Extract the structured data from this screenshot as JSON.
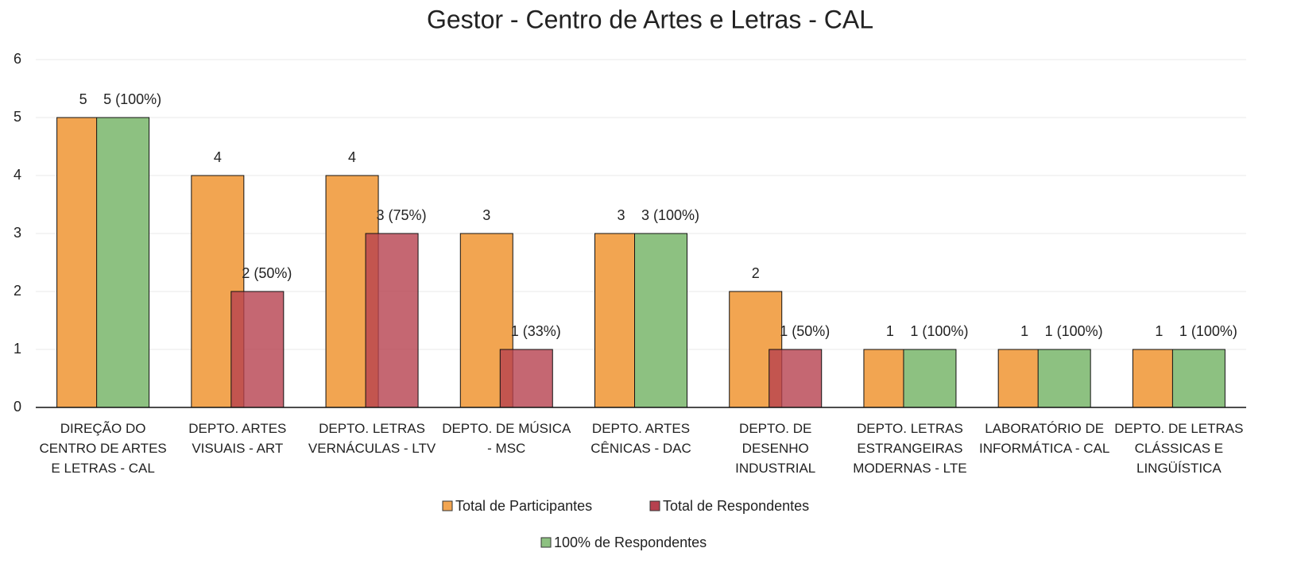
{
  "chart_data": {
    "type": "bar",
    "title": "Gestor - Centro de Artes e Letras - CAL",
    "categories": [
      "DIREÇÃO DO CENTRO DE ARTES E LETRAS - CAL",
      "DEPTO. ARTES VISUAIS - ART",
      "DEPTO. LETRAS VERNÁCULAS - LTV",
      "DEPTO. DE MÚSICA - MSC",
      "DEPTO. ARTES CÊNICAS - DAC",
      "DEPTO. DE DESENHO INDUSTRIAL",
      "DEPTO. LETRAS ESTRANGEIRAS MODERNAS - LTE",
      "LABORATÓRIO DE INFORMÁTICA - CAL",
      "DEPTO. DE LETRAS CLÁSSICAS E LINGÜÍSTICA"
    ],
    "series": [
      {
        "name": "Total de Participantes",
        "color": "#f2a551",
        "values": [
          5,
          4,
          4,
          3,
          3,
          2,
          1,
          1,
          1
        ]
      },
      {
        "name": "Total de Respondentes",
        "color": "#b6414f",
        "values": [
          null,
          2,
          3,
          1,
          null,
          1,
          null,
          null,
          null
        ],
        "value_labels": [
          null,
          "2 (50%)",
          "3 (75%)",
          "1 (33%)",
          null,
          "1 (50%)",
          null,
          null,
          null
        ]
      },
      {
        "name": "100% de Respondentes",
        "color": "#8dc181",
        "values": [
          5,
          null,
          null,
          null,
          3,
          null,
          1,
          1,
          1
        ],
        "value_labels": [
          "5 (100%)",
          null,
          null,
          null,
          "3 (100%)",
          null,
          "1 (100%)",
          "1 (100%)",
          "1 (100%)"
        ]
      }
    ],
    "ylim": [
      0,
      6
    ],
    "yticks": [
      0,
      1,
      2,
      3,
      4,
      5,
      6
    ],
    "grid": true
  }
}
